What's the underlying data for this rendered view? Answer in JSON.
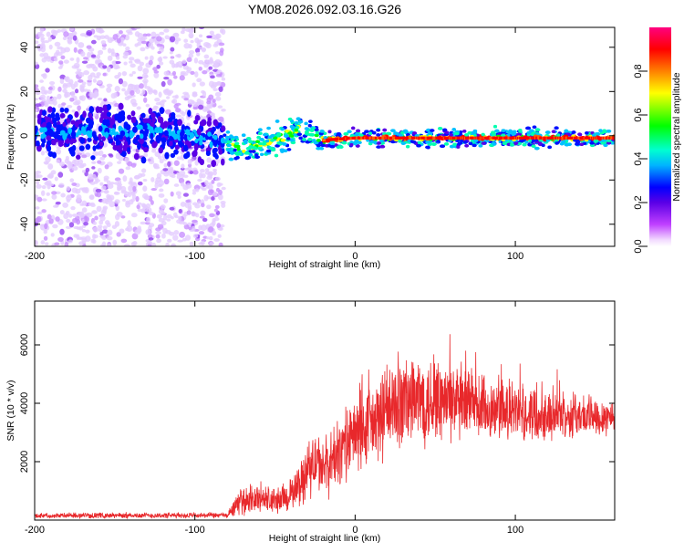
{
  "title": "YM08.2026.092.03.16.G26",
  "chart_data": [
    {
      "type": "heatmap",
      "xlabel": "Height of straight line (km)",
      "ylabel": "Frequency (Hz)",
      "xlim": [
        -200,
        162
      ],
      "ylim": [
        -50,
        49
      ],
      "xticks": [
        -200,
        -100,
        0,
        100
      ],
      "yticks": [
        -40,
        -20,
        0,
        20,
        40
      ],
      "colorbar": {
        "label": "Normalized spectral amplitude",
        "range": [
          0,
          1
        ],
        "ticks": [
          "0.0",
          "0.2",
          "0.4",
          "0.6",
          "0.8"
        ]
      },
      "trace": {
        "description_points_x": [
          -200,
          -120,
          -80,
          -70,
          -50,
          -35,
          -25,
          -20,
          0,
          50,
          100,
          162
        ],
        "description_points_freq": [
          2,
          2,
          -3,
          -6,
          -2,
          3,
          1,
          -2,
          -1,
          -1,
          -1,
          -1
        ]
      }
    },
    {
      "type": "line",
      "xlabel": "Height of straight line (km)",
      "ylabel": "SNR (10 * v/v)",
      "xlim": [
        -200,
        162
      ],
      "ylim": [
        0,
        7500
      ],
      "xticks": [
        -200,
        -100,
        0,
        100
      ],
      "yticks": [
        2000,
        4000,
        6000
      ],
      "color": "#e8282b",
      "envelope": {
        "x": [
          -200,
          -150,
          -80,
          -72,
          -60,
          -50,
          -40,
          -30,
          -25,
          -20,
          -10,
          0,
          10,
          20,
          30,
          40,
          50,
          60,
          80,
          100,
          130,
          162
        ],
        "mean": [
          150,
          150,
          150,
          600,
          700,
          600,
          800,
          1500,
          2000,
          1600,
          2200,
          2800,
          3100,
          3500,
          3900,
          4000,
          4000,
          3900,
          3700,
          3600,
          3500,
          3500
        ],
        "amp": [
          80,
          90,
          90,
          400,
          500,
          450,
          500,
          900,
          1000,
          900,
          1100,
          1200,
          1300,
          1400,
          1500,
          1500,
          1400,
          1300,
          1100,
          900,
          700,
          600
        ]
      }
    }
  ]
}
